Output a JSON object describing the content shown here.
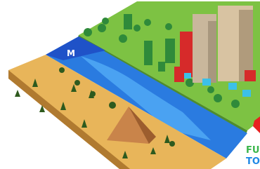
{
  "labels": {
    "map_marker": "M",
    "logo_line1": "FU",
    "logo_line2": "TO"
  }
}
